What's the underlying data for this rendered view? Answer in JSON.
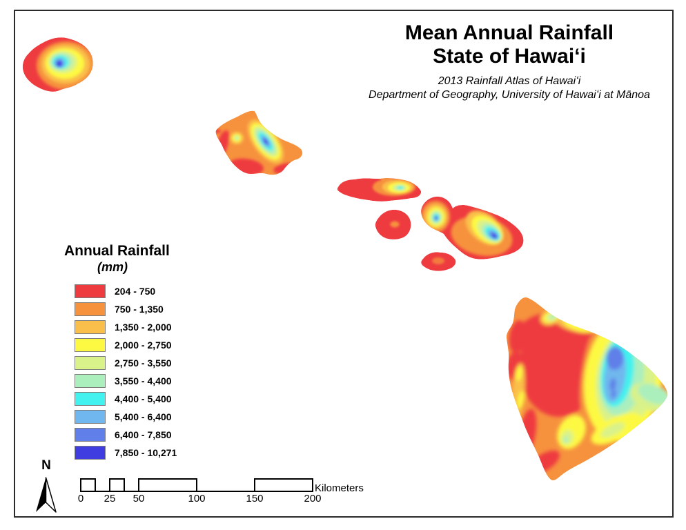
{
  "title": {
    "line1": "Mean Annual Rainfall",
    "line2": "State of Hawaiʻi"
  },
  "subtitle": {
    "line1": "2013 Rainfall Atlas of Hawaiʻi",
    "line2": "Department of Geography, University of Hawaiʻi at Mānoa"
  },
  "legend": {
    "title": "Annual Rainfall",
    "units": "(mm)",
    "items": [
      {
        "label": "204 - 750",
        "color": "#ee3b40"
      },
      {
        "label": "750 - 1,350",
        "color": "#f6923e"
      },
      {
        "label": "1,350 - 2,000",
        "color": "#fabf4a"
      },
      {
        "label": "2,000 - 2,750",
        "color": "#fdf943"
      },
      {
        "label": "2,750 - 3,550",
        "color": "#d9f289"
      },
      {
        "label": "3,550 - 4,400",
        "color": "#abefbd"
      },
      {
        "label": "4,400 - 5,400",
        "color": "#41f2ee"
      },
      {
        "label": "5,400 - 6,400",
        "color": "#6fb7ee"
      },
      {
        "label": "6,400 - 7,850",
        "color": "#617fe8"
      },
      {
        "label": "7,850 - 10,271",
        "color": "#3f3ce0"
      }
    ]
  },
  "north_arrow": {
    "label": "N"
  },
  "scalebar": {
    "ticks": [
      "0",
      "25",
      "50",
      "100",
      "150",
      "200"
    ],
    "units_label": "Kilometers"
  }
}
